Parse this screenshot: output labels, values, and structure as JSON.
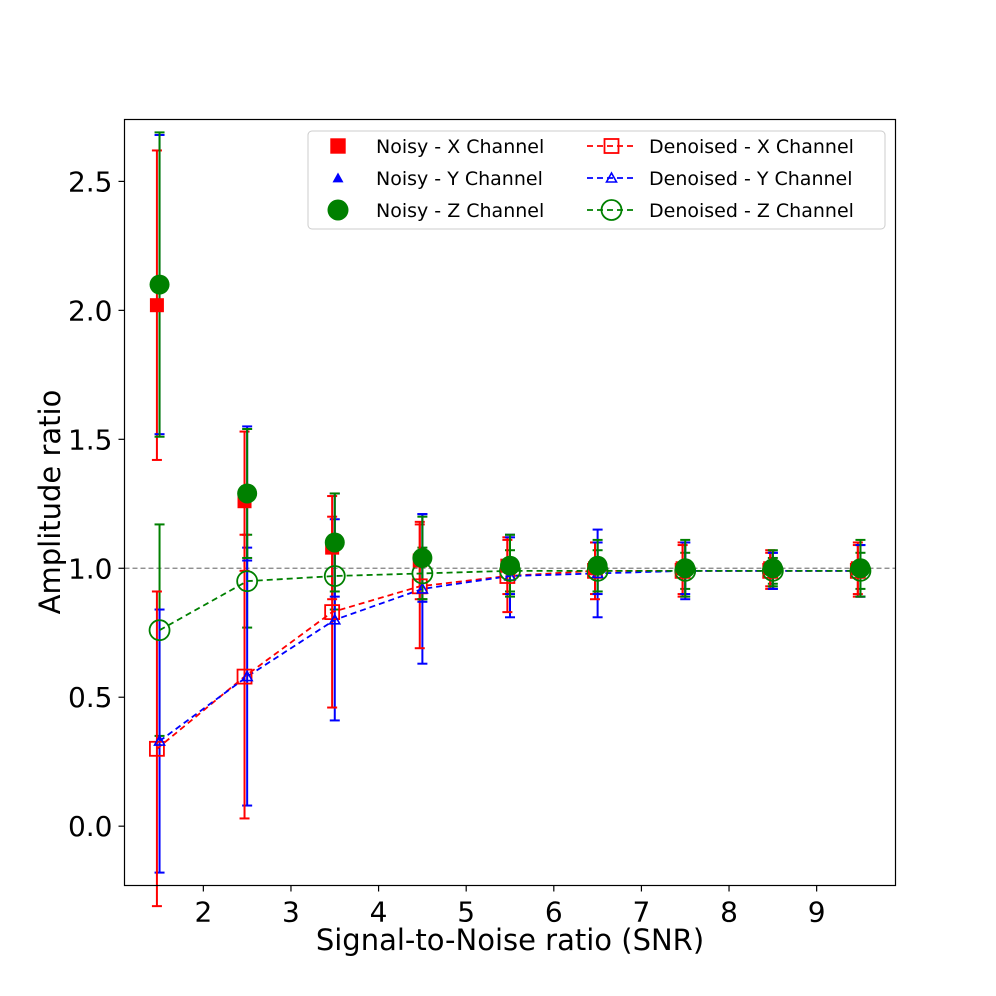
{
  "chart_data": {
    "type": "scatter",
    "title": "",
    "xlabel": "Signal-to-Noise ratio (SNR)",
    "ylabel": "Amplitude ratio",
    "xlim": [
      1.1,
      9.9
    ],
    "ylim": [
      -0.23,
      2.74
    ],
    "xticks": [
      2,
      3,
      4,
      5,
      6,
      7,
      8,
      9
    ],
    "yticks": [
      0.0,
      0.5,
      1.0,
      1.5,
      2.0,
      2.5
    ],
    "xtick_labels": [
      "2",
      "3",
      "4",
      "5",
      "6",
      "7",
      "8",
      "9"
    ],
    "ytick_labels": [
      "0.0",
      "0.5",
      "1.0",
      "1.5",
      "2.0",
      "2.5"
    ],
    "reference_line": 1.0,
    "legend_position": "top-right",
    "x": [
      1.5,
      2.5,
      3.5,
      4.5,
      5.5,
      6.5,
      7.5,
      8.5,
      9.5
    ],
    "series": [
      {
        "name": "Noisy - X Channel",
        "color": "#ff0000",
        "marker": "square-filled",
        "line": "none",
        "offset": -0.03,
        "values": [
          2.02,
          1.26,
          1.08,
          1.03,
          1.01,
          1.0,
          1.0,
          1.0,
          1.0
        ],
        "err": [
          0.6,
          0.27,
          0.2,
          0.15,
          0.11,
          0.1,
          0.1,
          0.07,
          0.1
        ]
      },
      {
        "name": "Noisy - Y Channel",
        "color": "#0000ff",
        "marker": "triangle-filled",
        "line": "none",
        "offset": 0.0,
        "values": [
          2.1,
          1.29,
          1.09,
          1.04,
          1.01,
          1.0,
          1.0,
          0.99,
          0.99
        ],
        "err": [
          0.58,
          0.26,
          0.2,
          0.17,
          0.11,
          0.1,
          0.1,
          0.07,
          0.1
        ]
      },
      {
        "name": "Noisy - Z Channel",
        "color": "#008000",
        "marker": "circle-filled",
        "line": "none",
        "offset": 0.0,
        "values": [
          2.1,
          1.29,
          1.1,
          1.04,
          1.01,
          1.01,
          1.0,
          1.0,
          1.0
        ],
        "err": [
          0.59,
          0.25,
          0.19,
          0.16,
          0.12,
          0.1,
          0.11,
          0.07,
          0.11
        ]
      },
      {
        "name": "Denoised - X Channel",
        "color": "#ff0000",
        "marker": "square-open",
        "line": "dashed",
        "offset": -0.03,
        "values": [
          0.3,
          0.58,
          0.83,
          0.93,
          0.97,
          0.99,
          0.99,
          0.99,
          0.99
        ],
        "err": [
          0.61,
          0.55,
          0.37,
          0.24,
          0.14,
          0.11,
          0.1,
          0.07,
          0.1
        ]
      },
      {
        "name": "Denoised - Y Channel",
        "color": "#0000ff",
        "marker": "triangle-open",
        "line": "dashed",
        "offset": 0.0,
        "values": [
          0.33,
          0.58,
          0.8,
          0.92,
          0.97,
          0.98,
          0.99,
          0.99,
          0.99
        ],
        "err": [
          0.51,
          0.5,
          0.39,
          0.29,
          0.16,
          0.17,
          0.11,
          0.07,
          0.1
        ]
      },
      {
        "name": "Denoised - Z Channel",
        "color": "#008000",
        "marker": "circle-open",
        "line": "dashed",
        "offset": 0.0,
        "values": [
          0.76,
          0.95,
          0.97,
          0.98,
          0.99,
          0.99,
          0.99,
          0.99,
          0.99
        ],
        "err": [
          0.41,
          0.18,
          0.13,
          0.1,
          0.08,
          0.08,
          0.07,
          0.05,
          0.07
        ]
      }
    ]
  }
}
